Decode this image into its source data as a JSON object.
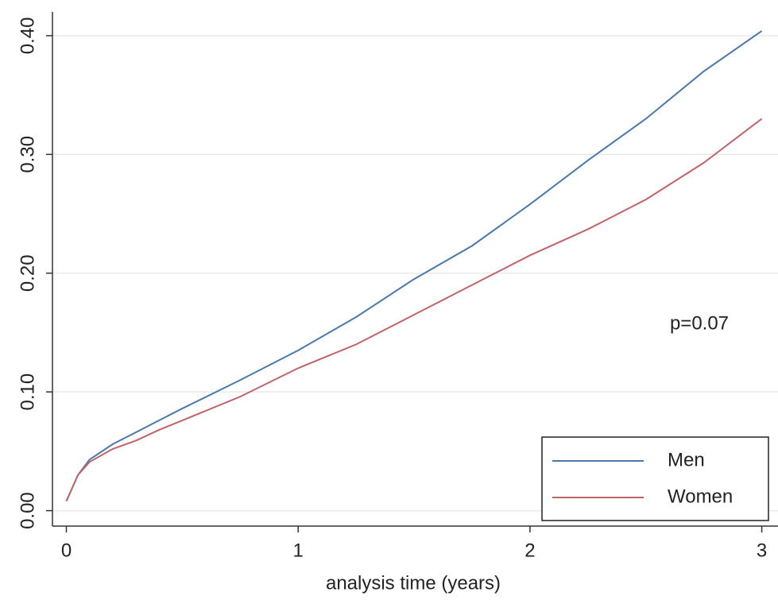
{
  "chart_data": {
    "type": "line",
    "x_label": "analysis time (years)",
    "annotation": "p=0.07",
    "xlim": [
      -0.06,
      3.07
    ],
    "ylim": [
      -0.013,
      0.42
    ],
    "xticks": [
      0,
      1,
      2,
      3
    ],
    "yticks": [
      {
        "value": 0,
        "label": "0.00"
      },
      {
        "value": 0.1,
        "label": "0.10"
      },
      {
        "value": 0.2,
        "label": "0.20"
      },
      {
        "value": 0.3,
        "label": "0.30"
      },
      {
        "value": 0.4,
        "label": "0.40"
      }
    ],
    "grid": true,
    "legend": "lower right",
    "x": [
      0,
      0.05,
      0.1,
      0.2,
      0.3,
      0.4,
      0.5,
      0.75,
      1,
      1.25,
      1.5,
      1.75,
      2,
      2.25,
      2.5,
      2.75,
      3
    ],
    "series": [
      {
        "name": "Men",
        "color": "#4a78ad",
        "values": [
          0.008,
          0.03,
          0.043,
          0.056,
          0.066,
          0.076,
          0.086,
          0.11,
          0.135,
          0.163,
          0.195,
          0.223,
          0.258,
          0.295,
          0.33,
          0.37,
          0.404
        ]
      },
      {
        "name": "Women",
        "color": "#c2636b",
        "values": [
          0.008,
          0.03,
          0.041,
          0.052,
          0.059,
          0.068,
          0.076,
          0.096,
          0.12,
          0.14,
          0.165,
          0.19,
          0.215,
          0.237,
          0.262,
          0.293,
          0.33
        ]
      }
    ]
  }
}
